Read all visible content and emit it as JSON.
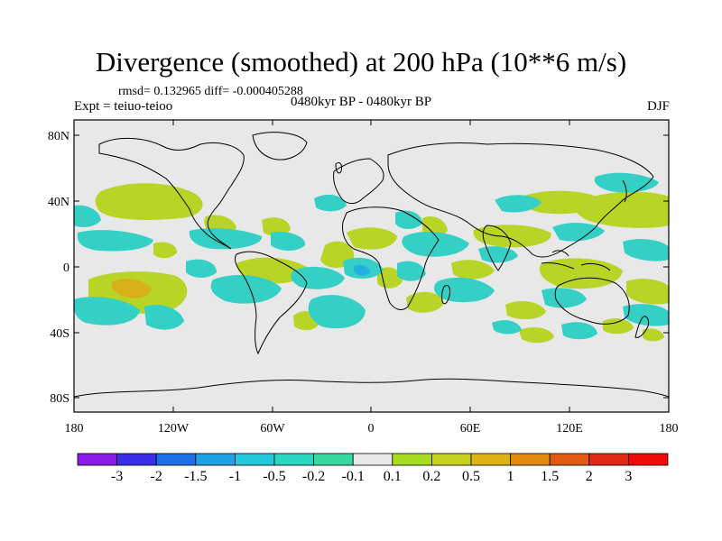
{
  "title": "Divergence (smoothed) at 200 hPa (10**6 m/s)",
  "stats": "rmsd= 0.132965 diff= -0.000405288",
  "expt": "Expt = teiuo-teioo",
  "period": "0480kyr BP - 0480kyr BP",
  "season": "DJF",
  "lat_labels": [
    "80N",
    "40N",
    "0",
    "40S",
    "80S"
  ],
  "lon_labels": [
    "180",
    "120W",
    "60W",
    "0",
    "60E",
    "120E",
    "180"
  ],
  "colorbar": {
    "labels": [
      "-3",
      "-2",
      "-1.5",
      "-1",
      "-0.5",
      "-0.2",
      "-0.1",
      "0.1",
      "0.2",
      "0.5",
      "1",
      "1.5",
      "2",
      "3"
    ],
    "colors": [
      "#8c1be8",
      "#3b2ee8",
      "#1e6fe6",
      "#1ea2e6",
      "#22c8dc",
      "#29d6c0",
      "#36d9a0",
      "#e8e8e8",
      "#a6dd22",
      "#c8d21e",
      "#dcb414",
      "#e08a12",
      "#e05a14",
      "#e02814",
      "#f00a0a"
    ]
  },
  "colors": {
    "neutral": "#e8e8e8",
    "positive": "#b8d426",
    "negative": "#34d0c6"
  }
}
